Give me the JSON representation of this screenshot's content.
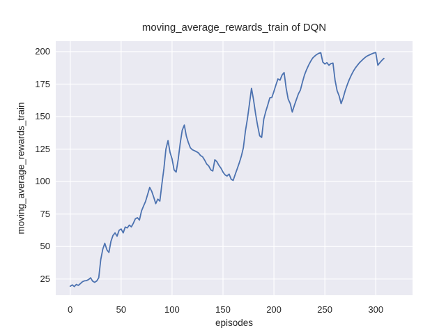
{
  "figure": {
    "background": "#ffffff",
    "plot_background": "#eaeaf2",
    "grid_color": "#ffffff",
    "text_color": "#262626"
  },
  "chart_data": {
    "type": "line",
    "title": "moving_average_rewards_train of DQN",
    "xlabel": "episodes",
    "ylabel": "moving_average_rewards_train",
    "grid": true,
    "legend_position": "none",
    "x_ticks": [
      0,
      50,
      100,
      150,
      200,
      250,
      300
    ],
    "y_ticks": [
      25,
      50,
      75,
      100,
      125,
      150,
      175,
      200
    ],
    "xlim": [
      -14.2,
      336.1
    ],
    "ylim": [
      12.55,
      208.05
    ],
    "series": [
      {
        "name": "moving_average_rewards_train",
        "color": "#4c72b0",
        "x": [
          0,
          2,
          4,
          6,
          8,
          10,
          12,
          14,
          16,
          18,
          20,
          22,
          24,
          26,
          28,
          30,
          32,
          34,
          36,
          38,
          40,
          42,
          44,
          46,
          48,
          50,
          52,
          54,
          56,
          58,
          60,
          62,
          64,
          66,
          68,
          70,
          72,
          74,
          76,
          78,
          80,
          82,
          84,
          86,
          88,
          90,
          92,
          94,
          96,
          98,
          100,
          102,
          104,
          106,
          108,
          110,
          112,
          114,
          116,
          118,
          120,
          122,
          124,
          126,
          128,
          130,
          132,
          134,
          136,
          138,
          140,
          142,
          144,
          146,
          148,
          150,
          152,
          154,
          156,
          158,
          160,
          162,
          164,
          166,
          168,
          170,
          172,
          174,
          176,
          178,
          180,
          182,
          184,
          186,
          188,
          190,
          192,
          194,
          196,
          198,
          200,
          202,
          204,
          206,
          208,
          210,
          212,
          214,
          216,
          218,
          220,
          222,
          224,
          226,
          228,
          230,
          232,
          234,
          236,
          238,
          240,
          242,
          244,
          246,
          248,
          250,
          252,
          254,
          256,
          258,
          260,
          262,
          264,
          266,
          268,
          270,
          272,
          274,
          276,
          278,
          280,
          282,
          284,
          286,
          288,
          290,
          292,
          294,
          296,
          298,
          300,
          302,
          304,
          306,
          308
        ],
        "y": [
          19.5,
          20.5,
          19.2,
          20.8,
          20.1,
          21.5,
          22.9,
          23.6,
          23.8,
          24.6,
          25.9,
          23.4,
          22.5,
          23.5,
          26.0,
          40.0,
          48.0,
          52.5,
          47.5,
          45.5,
          54.0,
          58.5,
          60.5,
          58.0,
          62.5,
          63.5,
          60.5,
          65.0,
          64.3,
          66.5,
          65.2,
          68.0,
          71.4,
          72.2,
          70.4,
          77.5,
          81.2,
          84.8,
          90.0,
          95.5,
          92.5,
          88.0,
          83.0,
          86.5,
          85.0,
          98.0,
          110.0,
          125.0,
          131.5,
          122.5,
          117.5,
          109.0,
          107.3,
          117.0,
          129.5,
          139.5,
          143.5,
          135.0,
          130.0,
          126.0,
          124.5,
          123.8,
          123.0,
          122.0,
          120.0,
          119.0,
          116.5,
          113.5,
          112.0,
          109.0,
          108.2,
          116.8,
          115.3,
          112.5,
          110.3,
          107.3,
          105.2,
          104.3,
          105.8,
          101.8,
          100.9,
          105.5,
          110.0,
          114.5,
          119.5,
          126.0,
          139.0,
          148.5,
          160.0,
          171.8,
          163.0,
          152.0,
          143.0,
          135.3,
          134.0,
          148.0,
          154.0,
          159.0,
          164.5,
          164.8,
          169.5,
          174.5,
          179.0,
          178.0,
          182.0,
          183.9,
          172.0,
          163.5,
          160.0,
          153.5,
          158.5,
          163.0,
          167.5,
          170.5,
          176.5,
          182.0,
          186.0,
          189.5,
          192.5,
          195.0,
          196.5,
          197.8,
          198.7,
          199.2,
          192.0,
          190.5,
          191.5,
          189.5,
          190.8,
          191.2,
          178.0,
          170.0,
          166.0,
          160.0,
          164.5,
          170.0,
          174.5,
          178.5,
          182.0,
          185.0,
          187.5,
          189.5,
          191.5,
          193.0,
          194.5,
          195.8,
          196.8,
          197.6,
          198.3,
          198.9,
          199.3,
          189.5,
          191.5,
          193.3,
          194.8
        ]
      }
    ]
  }
}
